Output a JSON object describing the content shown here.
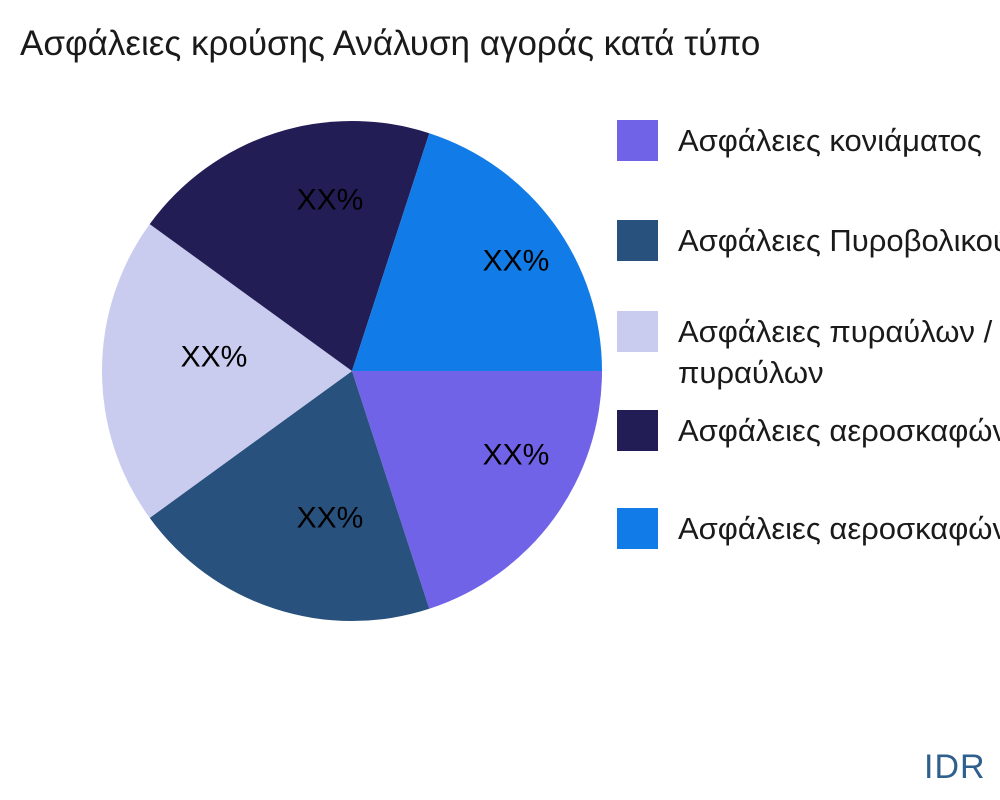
{
  "title": "Ασφάλειες κρούσης Ανάλυση αγοράς κατά τύπο",
  "watermark": "IDR",
  "chart_data": {
    "type": "pie",
    "title": "Ασφάλειες κρούσης Ανάλυση αγοράς κατά τύπο",
    "labels": [
      "Ασφάλειες κονιάματος",
      "Ασφάλειες Πυροβολικού",
      "Ασφάλειες πυραύλων / πυραύλων",
      "Ασφάλειες αεροσκαφών",
      "Ασφάλειες αεροσκαφών"
    ],
    "values": [
      20,
      20,
      20,
      20,
      20
    ],
    "value_labels": [
      "XX%",
      "XX%",
      "XX%",
      "XX%",
      "XX%"
    ],
    "colors": [
      "#7163e8",
      "#28527d",
      "#c9ccee",
      "#231d55",
      "#117ce8"
    ],
    "start_angle": 0,
    "direction": "clockwise",
    "legend_position": "right",
    "label_text_color": "#000000"
  },
  "legend": {
    "items": [
      {
        "label_lines": [
          "Ασφάλειες κονιάματος"
        ],
        "color": "#7163e8"
      },
      {
        "label_lines": [
          "Ασφάλειες Πυροβολικού"
        ],
        "color": "#28527d"
      },
      {
        "label_lines": [
          "Ασφάλειες πυραύλων /",
          "πυραύλων"
        ],
        "color": "#c9ccee"
      },
      {
        "label_lines": [
          "Ασφάλειες αεροσκαφών"
        ],
        "color": "#231d55"
      },
      {
        "label_lines": [
          "Ασφάλειες αεροσκαφών"
        ],
        "color": "#117ce8"
      }
    ]
  }
}
